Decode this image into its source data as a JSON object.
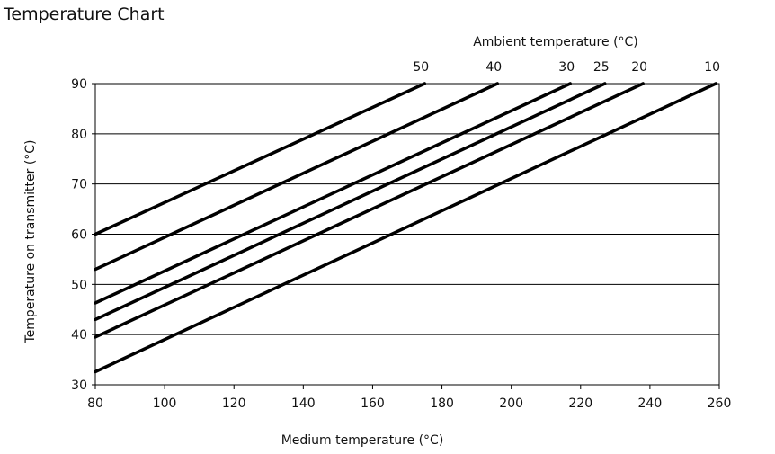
{
  "chart_data": {
    "type": "line",
    "title": "Temperature Chart",
    "xlabel": "Medium temperature (°C)",
    "ylabel": "Temperature on transmitter (°C)",
    "top_axis_label": "Ambient temperature (°C)",
    "xlim": [
      80,
      260
    ],
    "ylim": [
      30,
      90
    ],
    "x_ticks": [
      80,
      100,
      120,
      140,
      160,
      180,
      200,
      220,
      240,
      260
    ],
    "y_ticks": [
      30,
      40,
      50,
      60,
      70,
      80,
      90
    ],
    "grid": "horizontal",
    "series": [
      {
        "name": "50",
        "label": "50",
        "x": [
          80,
          175
        ],
        "y": [
          60,
          90
        ]
      },
      {
        "name": "40",
        "label": "40",
        "x": [
          80,
          196
        ],
        "y": [
          53,
          90
        ]
      },
      {
        "name": "30",
        "label": "30",
        "x": [
          80,
          217
        ],
        "y": [
          46.3,
          90
        ]
      },
      {
        "name": "25",
        "label": "25",
        "x": [
          80,
          227
        ],
        "y": [
          43,
          90
        ]
      },
      {
        "name": "20",
        "label": "20",
        "x": [
          80,
          238
        ],
        "y": [
          39.5,
          90
        ]
      },
      {
        "name": "10",
        "label": "10",
        "x": [
          80,
          259
        ],
        "y": [
          32.6,
          90
        ]
      }
    ]
  }
}
